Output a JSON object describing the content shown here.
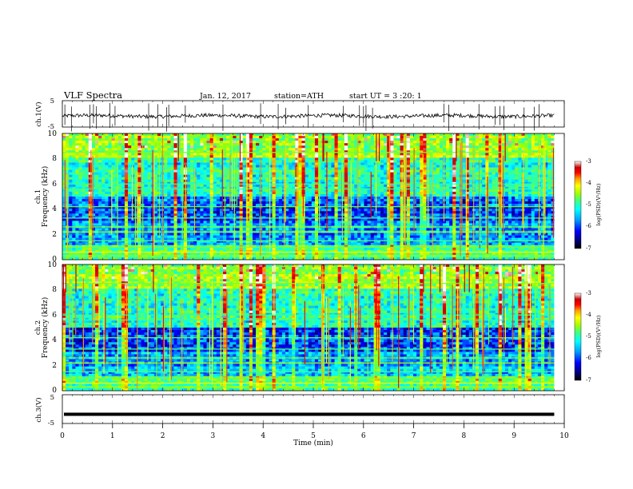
{
  "chart_data": {
    "type": "heatmap",
    "header": {
      "title": "VLF Spectra",
      "date": "Jan. 12, 2017",
      "station": "station=ATH",
      "start": "start UT = 3 :20: 1"
    },
    "x_axis": {
      "label": "Time (min)",
      "range": [
        0,
        10
      ],
      "ticks": [
        "0",
        "1",
        "2",
        "3",
        "4",
        "5",
        "6",
        "7",
        "8",
        "9",
        "10"
      ],
      "data_end_min": 9.8
    },
    "panels": [
      {
        "id": "ch1-voltage",
        "type": "line",
        "ylabel": "ch.1(V)",
        "ylim": [
          -5,
          5
        ],
        "ticks": [
          "5",
          "-5"
        ],
        "baseline_v": -0.8,
        "spike_times_min": [
          0.05,
          0.18,
          0.55,
          0.62,
          0.68,
          0.95,
          1.05,
          1.72,
          1.9,
          2.08,
          2.12,
          2.45,
          3.2,
          3.95,
          4.3,
          4.45,
          4.9,
          5.6,
          5.92,
          6.0,
          6.05,
          6.18,
          7.6,
          7.7,
          8.3,
          8.62,
          8.72,
          8.8,
          9.2,
          9.4,
          9.5
        ]
      },
      {
        "id": "ch1-spectrogram",
        "type": "heatmap",
        "ylabel": [
          "ch.1",
          "Frequency (kHz)"
        ],
        "ylim": [
          0,
          10
        ],
        "ticks": [
          "0",
          "2",
          "4",
          "6",
          "8",
          "10"
        ]
      },
      {
        "id": "ch2-spectrogram",
        "type": "heatmap",
        "ylabel": [
          "ch.2",
          "Frequency (kHz)"
        ],
        "ylim": [
          0,
          10
        ],
        "ticks": [
          "0",
          "2",
          "4",
          "6",
          "8",
          "10"
        ]
      },
      {
        "id": "ch3-voltage",
        "type": "line",
        "ylabel": "ch.3(V)",
        "ylim": [
          -5,
          5
        ],
        "ticks": [
          "5",
          "-5"
        ],
        "baseline_v": -1.8
      }
    ],
    "colorbar": {
      "label": "log(PSD)(V²/Hz)",
      "range": [
        -7,
        -3
      ],
      "ticks": [
        "-3",
        "-4",
        "-5",
        "-6",
        "-7"
      ],
      "colors": [
        "#000000",
        "#00007a",
        "#0000ff",
        "#00a0ff",
        "#00ffff",
        "#40ff80",
        "#a0ff00",
        "#ffff00",
        "#ffa000",
        "#ff0000",
        "#c80000",
        "#ffffff"
      ]
    },
    "grid": false
  }
}
